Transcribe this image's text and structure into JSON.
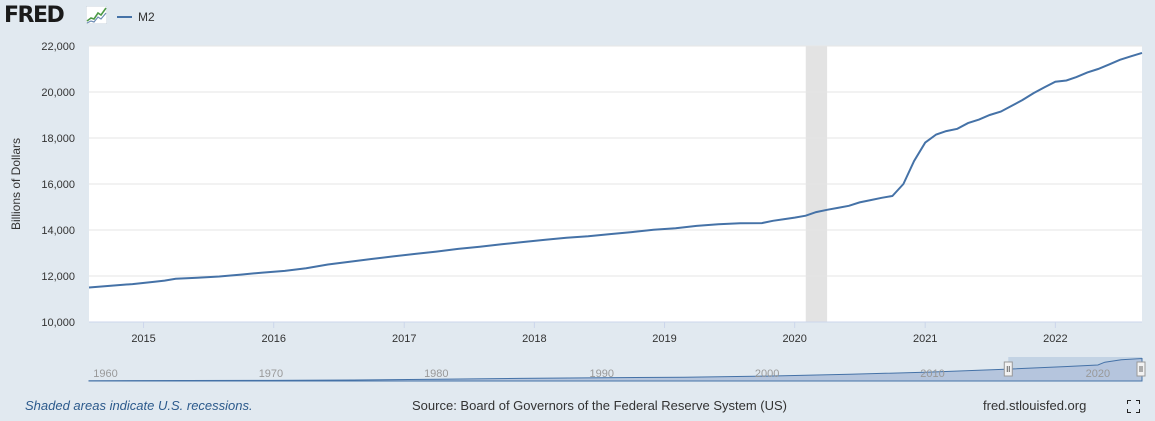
{
  "header": {
    "logo_text": "FRED",
    "legend_label": "M2"
  },
  "colors": {
    "series": "#4572a7",
    "recession": "#e3e3e3",
    "plot_bg": "#ffffff",
    "page_bg": "#e1e9f0",
    "grid": "#e6e6e6",
    "navigator_fill": "#b5c5dd"
  },
  "chart_data": {
    "type": "line",
    "title": "",
    "xlabel": "",
    "ylabel": "Billions of Dollars",
    "xlim": [
      "2014-08-01",
      "2022-09-01"
    ],
    "ylim": [
      10000,
      22000
    ],
    "y_ticks": [
      10000,
      12000,
      14000,
      16000,
      18000,
      20000,
      22000
    ],
    "y_tick_labels": [
      "10,000",
      "12,000",
      "14,000",
      "16,000",
      "18,000",
      "20,000",
      "22,000"
    ],
    "x_tick_labels": [
      "2015",
      "2016",
      "2017",
      "2018",
      "2019",
      "2020",
      "2021",
      "2022"
    ],
    "x_tick_dates": [
      "2015-01-01",
      "2016-01-01",
      "2017-01-01",
      "2018-01-01",
      "2019-01-01",
      "2020-01-01",
      "2021-01-01",
      "2022-01-01"
    ],
    "grid": true,
    "legend_position": "top-left",
    "recessions": [
      {
        "start": "2020-02-01",
        "end": "2020-04-01"
      }
    ],
    "series": [
      {
        "name": "M2",
        "points": [
          [
            "2014-08-01",
            11500
          ],
          [
            "2014-10-01",
            11580
          ],
          [
            "2014-12-01",
            11650
          ],
          [
            "2015-02-01",
            11750
          ],
          [
            "2015-03-01",
            11800
          ],
          [
            "2015-04-01",
            11880
          ],
          [
            "2015-06-01",
            11920
          ],
          [
            "2015-08-01",
            11980
          ],
          [
            "2015-10-01",
            12060
          ],
          [
            "2015-12-01",
            12150
          ],
          [
            "2016-02-01",
            12220
          ],
          [
            "2016-04-01",
            12340
          ],
          [
            "2016-06-01",
            12500
          ],
          [
            "2016-08-01",
            12620
          ],
          [
            "2016-10-01",
            12740
          ],
          [
            "2016-12-01",
            12850
          ],
          [
            "2017-02-01",
            12960
          ],
          [
            "2017-04-01",
            13060
          ],
          [
            "2017-06-01",
            13180
          ],
          [
            "2017-08-01",
            13270
          ],
          [
            "2017-10-01",
            13380
          ],
          [
            "2017-12-01",
            13480
          ],
          [
            "2018-02-01",
            13580
          ],
          [
            "2018-04-01",
            13660
          ],
          [
            "2018-06-01",
            13730
          ],
          [
            "2018-08-01",
            13820
          ],
          [
            "2018-10-01",
            13910
          ],
          [
            "2018-12-01",
            14010
          ],
          [
            "2019-02-01",
            14080
          ],
          [
            "2019-04-01",
            14180
          ],
          [
            "2019-06-01",
            14250
          ],
          [
            "2019-08-01",
            14290
          ],
          [
            "2019-10-01",
            14300
          ],
          [
            "2019-11-01",
            14400
          ],
          [
            "2019-12-01",
            14470
          ],
          [
            "2020-01-01",
            14540
          ],
          [
            "2020-02-01",
            14620
          ],
          [
            "2020-03-01",
            14780
          ],
          [
            "2020-04-01",
            14880
          ],
          [
            "2020-05-01",
            14960
          ],
          [
            "2020-06-01",
            15050
          ],
          [
            "2020-07-01",
            15200
          ],
          [
            "2020-08-01",
            15300
          ],
          [
            "2020-09-01",
            15400
          ],
          [
            "2020-10-01",
            15480
          ],
          [
            "2020-11-01",
            16000
          ],
          [
            "2020-12-01",
            17000
          ],
          [
            "2021-01-01",
            17800
          ],
          [
            "2021-02-01",
            18150
          ],
          [
            "2021-03-01",
            18300
          ],
          [
            "2021-04-01",
            18400
          ],
          [
            "2021-05-01",
            18650
          ],
          [
            "2021-06-01",
            18800
          ],
          [
            "2021-07-01",
            19000
          ],
          [
            "2021-08-01",
            19150
          ],
          [
            "2021-09-01",
            19400
          ],
          [
            "2021-10-01",
            19650
          ],
          [
            "2021-11-01",
            19950
          ],
          [
            "2021-12-01",
            20200
          ],
          [
            "2022-01-01",
            20450
          ],
          [
            "2022-02-01",
            20500
          ],
          [
            "2022-03-01",
            20650
          ],
          [
            "2022-04-01",
            20850
          ],
          [
            "2022-05-01",
            21000
          ],
          [
            "2022-06-01",
            21200
          ],
          [
            "2022-07-01",
            21400
          ],
          [
            "2022-08-01",
            21550
          ],
          [
            "2022-09-01",
            21700
          ]
        ]
      }
    ]
  },
  "navigator": {
    "labels": [
      "1960",
      "1970",
      "1980",
      "1990",
      "2000",
      "2010",
      "2020"
    ],
    "label_dates": [
      "1960-01-01",
      "1970-01-01",
      "1980-01-01",
      "1990-01-01",
      "2000-01-01",
      "2010-01-01",
      "2020-01-01"
    ],
    "range": [
      "1959-01-01",
      "2022-09-01"
    ],
    "selected": [
      "2014-08-01",
      "2022-09-01"
    ],
    "profile": [
      [
        "1959-01-01",
        290
      ],
      [
        "1965-01-01",
        460
      ],
      [
        "1970-01-01",
        600
      ],
      [
        "1975-01-01",
        1000
      ],
      [
        "1980-01-01",
        1600
      ],
      [
        "1985-01-01",
        2500
      ],
      [
        "1990-01-01",
        3200
      ],
      [
        "1995-01-01",
        3600
      ],
      [
        "2000-01-01",
        4700
      ],
      [
        "2005-01-01",
        6500
      ],
      [
        "2010-01-01",
        8700
      ],
      [
        "2014-08-01",
        11500
      ],
      [
        "2018-01-01",
        13900
      ],
      [
        "2020-01-01",
        15400
      ],
      [
        "2020-06-01",
        18100
      ],
      [
        "2021-06-01",
        20500
      ],
      [
        "2022-09-01",
        21700
      ]
    ]
  },
  "footer": {
    "note": "Shaded areas indicate U.S. recessions.",
    "source": "Source: Board of Governors of the Federal Reserve System (US)",
    "site": "fred.stlouisfed.org"
  }
}
